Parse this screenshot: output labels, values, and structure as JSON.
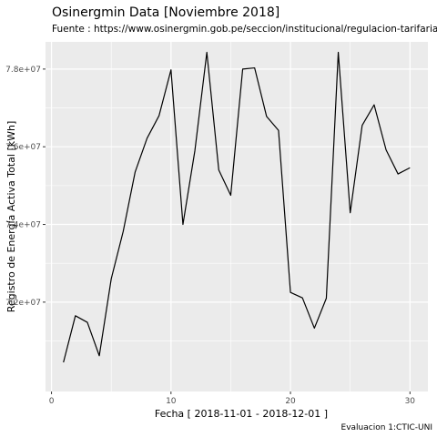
{
  "chart_data": {
    "type": "line",
    "title": "Osinergmin Data [Noviembre 2018]",
    "subtitle": "Fuente : https://www.osinergmin.gob.pe/seccion/institucional/regulacion-tarifaria/publicaciones",
    "xlabel": "Fecha [ 2018-11-01 - 2018-12-01 ]",
    "ylabel": "Registro de Energía Activa Total [kWh]",
    "caption": "Evaluacion 1:CTIC-UNI",
    "xlim": [
      -0.5,
      31.5
    ],
    "ylim": [
      69700000,
      78700000
    ],
    "x_ticks": [
      0,
      10,
      20,
      30
    ],
    "x_tick_labels": [
      "0",
      "10",
      "20",
      "30"
    ],
    "y_ticks": [
      72000000,
      74000000,
      76000000,
      78000000
    ],
    "y_tick_labels": [
      "7.2e+07",
      "7.4e+07",
      "7.6e+07",
      "7.8e+07"
    ],
    "grid": true,
    "background": "#ebebeb",
    "line_color": "#000000",
    "x": [
      1,
      2,
      3,
      4,
      5,
      6,
      7,
      8,
      9,
      10,
      11,
      12,
      13,
      14,
      15,
      16,
      17,
      18,
      19,
      20,
      21,
      22,
      23,
      24,
      25,
      26,
      27,
      28,
      29,
      30
    ],
    "values": [
      70450000,
      71650000,
      71480000,
      70620000,
      72600000,
      73820000,
      75350000,
      76220000,
      76800000,
      77980000,
      74000000,
      75900000,
      78430000,
      75400000,
      74750000,
      78000000,
      78030000,
      76780000,
      76420000,
      72250000,
      72110000,
      71330000,
      72100000,
      78430000,
      74300000,
      76550000,
      77080000,
      75920000,
      75300000,
      75460000
    ]
  }
}
